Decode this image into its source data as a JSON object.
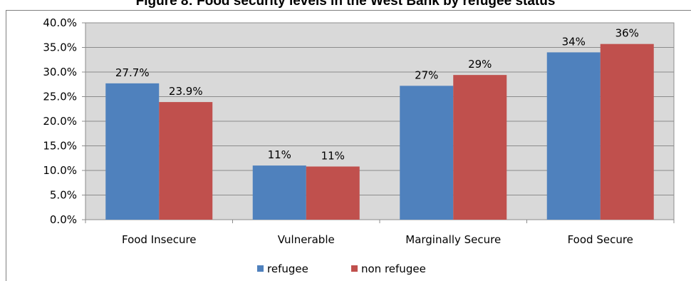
{
  "chart_data": {
    "type": "bar",
    "title": "Figure 8: Food security levels in the West Bank by refugee status",
    "categories": [
      "Food Insecure",
      "Vulnerable",
      "Marginally Secure",
      "Food Secure"
    ],
    "series": [
      {
        "name": "refugee",
        "values": [
          27.7,
          11.0,
          27.2,
          34.0
        ],
        "labels": [
          "27.7%",
          "11%",
          "27%",
          "34%"
        ],
        "color": "#4f81bd"
      },
      {
        "name": "non refugee",
        "values": [
          23.9,
          10.8,
          29.4,
          35.7
        ],
        "labels": [
          "23.9%",
          "11%",
          "29%",
          "36%"
        ],
        "color": "#c0504d"
      }
    ],
    "ylim": [
      0,
      40
    ],
    "yticks": [
      "0.0%",
      "5.0%",
      "10.0%",
      "15.0%",
      "20.0%",
      "25.0%",
      "30.0%",
      "35.0%",
      "40.0%"
    ],
    "grid": true,
    "legend": "bottom",
    "plot_background": "#d9d9d9"
  }
}
